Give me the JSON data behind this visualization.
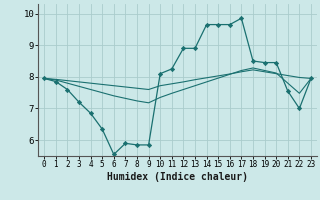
{
  "xlabel": "Humidex (Indice chaleur)",
  "xlim": [
    -0.5,
    23.5
  ],
  "ylim": [
    5.5,
    10.3
  ],
  "yticks": [
    6,
    7,
    8,
    9,
    10
  ],
  "xticks": [
    0,
    1,
    2,
    3,
    4,
    5,
    6,
    7,
    8,
    9,
    10,
    11,
    12,
    13,
    14,
    15,
    16,
    17,
    18,
    19,
    20,
    21,
    22,
    23
  ],
  "background_color": "#cce8e8",
  "grid_color": "#aacccc",
  "line_color": "#1a7070",
  "line1_x": [
    0,
    1,
    2,
    3,
    4,
    5,
    6,
    7,
    8,
    9,
    10,
    11,
    12,
    13,
    14,
    15,
    16,
    17,
    18,
    19,
    20,
    21,
    22,
    23
  ],
  "line1_y": [
    7.95,
    7.85,
    7.6,
    7.2,
    6.85,
    6.35,
    5.55,
    5.9,
    5.85,
    5.85,
    8.1,
    8.25,
    8.9,
    8.9,
    9.65,
    9.65,
    9.65,
    9.85,
    8.5,
    8.45,
    8.45,
    7.55,
    7.0,
    7.95
  ],
  "line2_x": [
    0,
    1,
    2,
    3,
    4,
    5,
    6,
    7,
    8,
    9,
    10,
    11,
    12,
    13,
    14,
    15,
    16,
    17,
    18,
    19,
    20,
    21,
    22,
    23
  ],
  "line2_y": [
    7.95,
    7.92,
    7.88,
    7.84,
    7.8,
    7.76,
    7.72,
    7.68,
    7.64,
    7.6,
    7.72,
    7.78,
    7.84,
    7.91,
    7.97,
    8.03,
    8.09,
    8.16,
    8.22,
    8.16,
    8.1,
    8.04,
    7.98,
    7.95
  ],
  "line3_x": [
    0,
    1,
    2,
    3,
    4,
    5,
    6,
    7,
    8,
    9,
    10,
    11,
    12,
    13,
    14,
    15,
    16,
    17,
    18,
    19,
    20,
    21,
    22,
    23
  ],
  "line3_y": [
    7.95,
    7.9,
    7.8,
    7.7,
    7.6,
    7.5,
    7.4,
    7.32,
    7.24,
    7.18,
    7.35,
    7.48,
    7.6,
    7.72,
    7.84,
    7.96,
    8.08,
    8.2,
    8.28,
    8.2,
    8.12,
    7.8,
    7.48,
    7.95
  ]
}
